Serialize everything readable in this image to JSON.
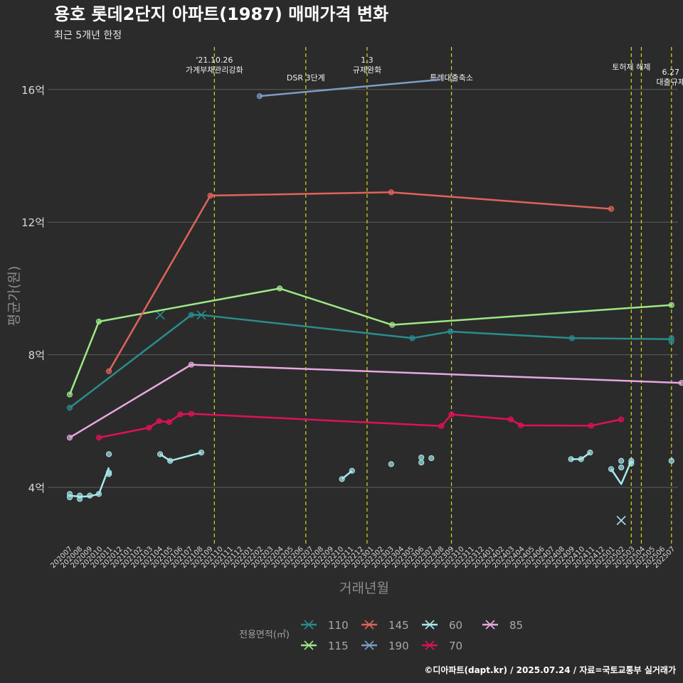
{
  "title": "용호 롯데2단지 아파트(1987) 매매가격 변화",
  "subtitle": "최근 5개년 한정",
  "caption": "©디아파트(dapt.kr) / 2025.07.24 / 자료=국토교통부 실거래가",
  "legend_title": "전용면적(㎡)",
  "chart_data": {
    "type": "line",
    "xlabel": "거래년월",
    "ylabel": "평균가(원)",
    "ylim": [
      2.4,
      17.3
    ],
    "yticks": [
      4,
      8,
      12,
      16
    ],
    "ytick_labels": [
      "4억",
      "8억",
      "12억",
      "16억"
    ],
    "grid": true,
    "legend_position": "bottom",
    "x_categories": [
      "202007",
      "202008",
      "202009",
      "202010",
      "202011",
      "202012",
      "202101",
      "202102",
      "202103",
      "202104",
      "202105",
      "202106",
      "202107",
      "202108",
      "202109",
      "202110",
      "202111",
      "202112",
      "202201",
      "202202",
      "202203",
      "202204",
      "202205",
      "202206",
      "202207",
      "202208",
      "202209",
      "202210",
      "202211",
      "202212",
      "202301",
      "202302",
      "202303",
      "202304",
      "202305",
      "202306",
      "202307",
      "202308",
      "202309",
      "202310",
      "202311",
      "202312",
      "202401",
      "202402",
      "202403",
      "202404",
      "202405",
      "202406",
      "202407",
      "202408",
      "202409",
      "202410",
      "202411",
      "202412",
      "202501",
      "202502",
      "202503",
      "202504",
      "202505",
      "202506",
      "202507"
    ],
    "events": [
      {
        "x": 14.4,
        "label": "'21.10.26\n가계부채관리강화",
        "row": 0
      },
      {
        "x": 23.5,
        "label": "DSR 3단계",
        "row": 1
      },
      {
        "x": 29.6,
        "label": "1.3\n규제완화",
        "row": 0
      },
      {
        "x": 38.0,
        "label": "특례대출축소",
        "row": 1
      },
      {
        "x": 55.9,
        "label": "토허제 해제",
        "row": 0
      },
      {
        "x": 56.9,
        "label": "",
        "row": 0
      },
      {
        "x": 59.9,
        "label": "6.27\n대출규제",
        "row": 2
      }
    ],
    "series": [
      {
        "name": "110",
        "color": "#2a8c8c",
        "points": [
          [
            0.0,
            6.4
          ],
          [
            12.1,
            9.2
          ],
          [
            13.1,
            9.2
          ],
          [
            34.1,
            8.5
          ],
          [
            37.9,
            8.7
          ],
          [
            50.0,
            8.5
          ],
          [
            59.9,
            8.47
          ]
        ],
        "scatter": [
          [
            0.0,
            6.4
          ],
          [
            12.1,
            9.2
          ],
          [
            34.1,
            8.5
          ],
          [
            37.9,
            8.7
          ],
          [
            50.0,
            8.5
          ],
          [
            59.9,
            8.5
          ],
          [
            59.9,
            8.4
          ]
        ],
        "crosses": [
          [
            9.0,
            9.2
          ],
          [
            13.1,
            9.2
          ]
        ]
      },
      {
        "name": "115",
        "color": "#9de885",
        "points": [
          [
            0.0,
            6.8
          ],
          [
            2.9,
            9.0
          ],
          [
            20.9,
            10.0
          ],
          [
            32.1,
            8.9
          ],
          [
            59.9,
            9.5
          ]
        ],
        "scatter": [
          [
            0.0,
            6.8
          ],
          [
            2.9,
            9.0
          ],
          [
            20.9,
            10.0
          ],
          [
            32.1,
            8.9
          ],
          [
            59.9,
            9.5
          ]
        ],
        "crosses": []
      },
      {
        "name": "145",
        "color": "#e0635a",
        "points": [
          [
            3.9,
            7.5
          ],
          [
            14.0,
            12.8
          ],
          [
            32.0,
            12.9
          ],
          [
            53.9,
            12.4
          ]
        ],
        "scatter": [
          [
            3.9,
            7.5
          ],
          [
            14.0,
            12.8
          ],
          [
            32.0,
            12.9
          ],
          [
            53.9,
            12.4
          ]
        ],
        "crosses": []
      },
      {
        "name": "190",
        "color": "#7d9cc8",
        "points": [
          [
            18.9,
            15.8
          ],
          [
            36.9,
            16.3
          ]
        ],
        "scatter": [
          [
            18.9,
            15.8
          ]
        ],
        "crosses": []
      },
      {
        "name": "60",
        "color": "#a8e8ec",
        "points": [
          [
            0.0,
            3.75
          ],
          [
            1.0,
            3.72
          ],
          [
            2.0,
            3.73
          ],
          [
            2.9,
            3.8
          ],
          [
            3.9,
            4.6
          ]
        ],
        "segments": [
          [
            [
              0.0,
              3.75
            ],
            [
              1.0,
              3.72
            ],
            [
              2.0,
              3.73
            ],
            [
              2.9,
              3.8
            ],
            [
              3.9,
              4.6
            ]
          ],
          [
            [
              9.0,
              5.0
            ],
            [
              10.0,
              4.8
            ],
            [
              13.1,
              5.05
            ]
          ],
          [
            [
              27.1,
              4.25
            ],
            [
              28.1,
              4.5
            ]
          ],
          [
            [
              49.9,
              4.85
            ],
            [
              50.9,
              4.85
            ],
            [
              51.8,
              5.05
            ]
          ],
          [
            [
              53.9,
              4.55
            ],
            [
              54.9,
              4.1
            ],
            [
              55.9,
              4.8
            ]
          ]
        ],
        "scatter": [
          [
            0.0,
            3.8
          ],
          [
            0.0,
            3.7
          ],
          [
            1.0,
            3.75
          ],
          [
            1.0,
            3.65
          ],
          [
            2.0,
            3.75
          ],
          [
            2.9,
            3.8
          ],
          [
            3.9,
            5.0
          ],
          [
            3.9,
            4.45
          ],
          [
            3.9,
            4.4
          ],
          [
            9.0,
            5.0
          ],
          [
            10.0,
            4.8
          ],
          [
            13.1,
            5.05
          ],
          [
            27.1,
            4.25
          ],
          [
            28.1,
            4.5
          ],
          [
            32.0,
            4.7
          ],
          [
            35.0,
            4.9
          ],
          [
            35.0,
            4.75
          ],
          [
            36.0,
            4.88
          ],
          [
            49.9,
            4.85
          ],
          [
            50.9,
            4.85
          ],
          [
            51.8,
            5.05
          ],
          [
            53.9,
            4.55
          ],
          [
            54.9,
            4.8
          ],
          [
            54.9,
            4.6
          ],
          [
            55.9,
            4.8
          ],
          [
            55.9,
            4.72
          ],
          [
            59.9,
            4.8
          ]
        ],
        "crosses": [
          [
            54.9,
            3.0
          ]
        ]
      },
      {
        "name": "70",
        "color": "#e0105a",
        "points": [
          [
            2.9,
            5.5
          ],
          [
            7.9,
            5.8
          ],
          [
            8.9,
            6.0
          ],
          [
            9.9,
            5.97
          ],
          [
            11.0,
            6.2
          ],
          [
            12.1,
            6.22
          ],
          [
            37.0,
            5.85
          ],
          [
            38.0,
            6.2
          ],
          [
            43.9,
            6.05
          ],
          [
            44.9,
            5.87
          ],
          [
            51.9,
            5.86
          ],
          [
            54.9,
            6.05
          ]
        ],
        "scatter": [
          [
            2.9,
            5.5
          ],
          [
            7.9,
            5.8
          ],
          [
            8.9,
            6.0
          ],
          [
            9.9,
            5.97
          ],
          [
            11.0,
            6.2
          ],
          [
            12.1,
            6.22
          ],
          [
            37.0,
            5.85
          ],
          [
            38.0,
            6.2
          ],
          [
            43.9,
            6.05
          ],
          [
            44.9,
            5.87
          ],
          [
            51.9,
            5.86
          ],
          [
            54.9,
            6.05
          ]
        ],
        "crosses": []
      },
      {
        "name": "85",
        "color": "#e6a8e0",
        "points": [
          [
            0.0,
            5.5
          ],
          [
            12.1,
            7.7
          ],
          [
            60.9,
            7.15
          ]
        ],
        "scatter": [
          [
            0.0,
            5.5
          ],
          [
            12.1,
            7.7
          ],
          [
            60.9,
            7.15
          ]
        ],
        "crosses": []
      }
    ],
    "legend_order": [
      "110",
      "145",
      "60",
      "85",
      "115",
      "190",
      "70"
    ]
  }
}
